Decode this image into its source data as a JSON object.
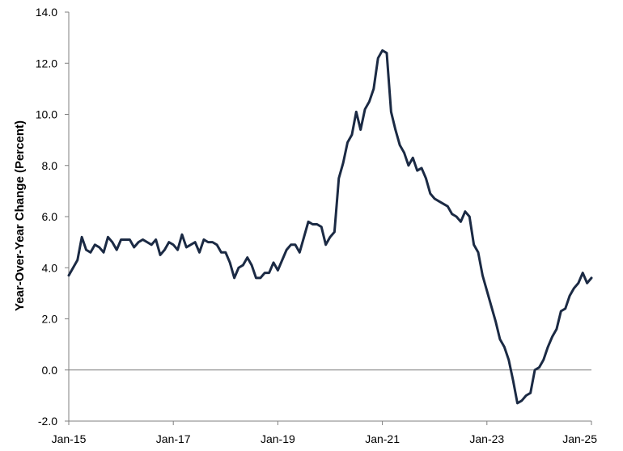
{
  "chart_data": {
    "type": "line",
    "title": "",
    "xlabel": "",
    "ylabel": "Year-Over-Year Change (Percent)",
    "ylim": [
      -2.0,
      14.0
    ],
    "yticks": [
      -2.0,
      0.0,
      2.0,
      4.0,
      6.0,
      8.0,
      10.0,
      12.0,
      14.0
    ],
    "ytick_labels": [
      "-2.0",
      "0.0",
      "2.0",
      "4.0",
      "6.0",
      "8.0",
      "10.0",
      "12.0",
      "14.0"
    ],
    "xticks": [
      "Jan-15",
      "Jan-17",
      "Jan-19",
      "Jan-21",
      "Jan-23",
      "Jan-25"
    ],
    "x_range": [
      "Jan-15",
      "Jan-25"
    ],
    "grid": false,
    "zero_line": true,
    "legend": "none",
    "line_color": "#1b2a44",
    "series": [
      {
        "frequency": "monthly",
        "start": "Jan-15",
        "values": [
          3.7,
          4.0,
          4.3,
          5.2,
          4.7,
          4.6,
          4.9,
          4.8,
          4.6,
          5.2,
          5.0,
          4.7,
          5.1,
          5.1,
          5.1,
          4.8,
          5.0,
          5.1,
          5.0,
          4.9,
          5.1,
          4.5,
          4.7,
          5.0,
          4.9,
          4.7,
          5.3,
          4.8,
          4.9,
          5.0,
          4.6,
          5.1,
          5.0,
          5.0,
          4.9,
          4.6,
          4.6,
          4.2,
          3.6,
          4.0,
          4.1,
          4.4,
          4.1,
          3.6,
          3.6,
          3.8,
          3.8,
          4.2,
          3.9,
          4.3,
          4.7,
          4.9,
          4.9,
          4.6,
          5.2,
          5.8,
          5.7,
          5.7,
          5.6,
          4.9,
          5.2,
          5.4,
          7.5,
          8.1,
          8.9,
          9.2,
          10.1,
          9.4,
          10.2,
          10.5,
          11.0,
          12.2,
          12.5,
          12.4,
          10.1,
          9.4,
          8.8,
          8.5,
          8.0,
          8.3,
          7.8,
          7.9,
          7.5,
          6.9,
          6.7,
          6.6,
          6.5,
          6.4,
          6.1,
          6.0,
          5.8,
          6.2,
          6.0,
          4.9,
          4.6,
          3.7,
          3.1,
          2.5,
          1.9,
          1.2,
          0.9,
          0.4,
          -0.4,
          -1.3,
          -1.2,
          -1.0,
          -0.9,
          0.0,
          0.1,
          0.4,
          0.9,
          1.3,
          1.6,
          2.3,
          2.4,
          2.9,
          3.2,
          3.4,
          3.8,
          3.4,
          3.6
        ]
      }
    ]
  }
}
